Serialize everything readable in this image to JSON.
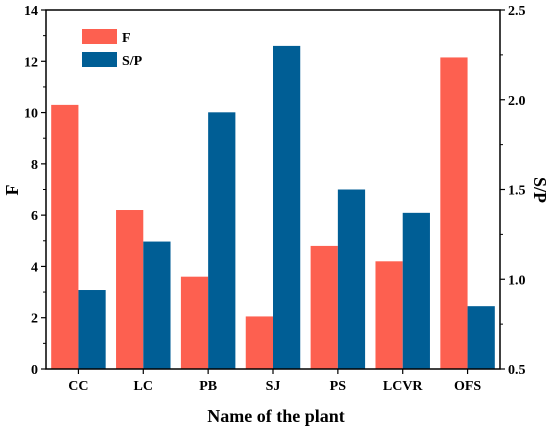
{
  "chart_data": {
    "type": "bar",
    "categories": [
      "CC",
      "LC",
      "PB",
      "SJ",
      "PS",
      "LCVR",
      "OFS"
    ],
    "series": [
      {
        "name": "F",
        "axis": "left",
        "color": "#fd6050",
        "values": [
          10.3,
          6.2,
          3.6,
          2.05,
          4.8,
          4.2,
          12.15
        ]
      },
      {
        "name": "S/P",
        "axis": "right",
        "color": "#005e95",
        "values": [
          0.94,
          1.21,
          1.93,
          2.3,
          1.5,
          1.37,
          0.85
        ]
      }
    ],
    "xlabel": "Name of the plant",
    "ylabel": "F",
    "ylabel_right": "S/P",
    "ylim": [
      0,
      14
    ],
    "ylim_right": [
      0.5,
      2.5
    ],
    "yticks": [
      "0",
      "2",
      "4",
      "6",
      "8",
      "10",
      "12",
      "14"
    ],
    "yticks_right": [
      "0.5",
      "1.0",
      "1.5",
      "2.0",
      "2.5"
    ],
    "legend": "top-left",
    "grid": false
  }
}
